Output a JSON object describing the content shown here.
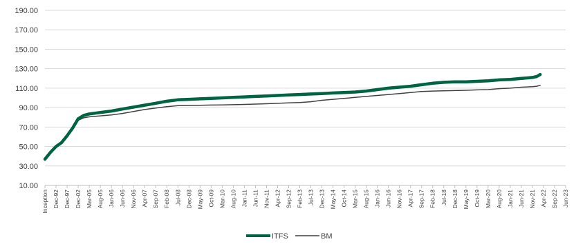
{
  "chart_data": {
    "type": "line",
    "ylim": [
      10,
      190
    ],
    "y_ticks": [
      "10.00",
      "30.00",
      "50.00",
      "70.00",
      "90.00",
      "110.00",
      "130.00",
      "150.00",
      "170.00",
      "190.00"
    ],
    "grid": "horizontal",
    "legend_position": "bottom-center",
    "x_tick_labels": [
      "Inception",
      "Dec-92",
      "Dec-97",
      "Dec-02",
      "Mar-05",
      "Aug-05",
      "Jan-06",
      "Jun-06",
      "Nov-06",
      "Apr-07",
      "Sep-07",
      "Feb-08",
      "Jul-08",
      "Dec-08",
      "May-09",
      "Oct-09",
      "Mar-10",
      "Aug-10",
      "Jan-11",
      "Jun-11",
      "Nov-11",
      "Apr-12",
      "Sep-12",
      "Feb-13",
      "Jul-13",
      "Dec-13",
      "May-14",
      "Oct-14",
      "Mar-15",
      "Aug-15",
      "Jan-16",
      "Jun-16",
      "Nov-16",
      "Apr-17",
      "Sep-17",
      "Feb-18",
      "Jul-18",
      "Dec-18",
      "May-19",
      "Oct-19",
      "Mar-20",
      "Aug-20",
      "Jan-21",
      "Jun-21",
      "Nov-21",
      "Apr-22",
      "Sep-22",
      "Jun-23"
    ],
    "series": [
      {
        "name": "ITFS",
        "color": "#006341",
        "values": [
          [
            0,
            37
          ],
          [
            0.5,
            44
          ],
          [
            1,
            50
          ],
          [
            1.5,
            54
          ],
          [
            2,
            61
          ],
          [
            2.5,
            69
          ],
          [
            3,
            78.5
          ],
          [
            3.5,
            82
          ],
          [
            4,
            83.5
          ],
          [
            5,
            85
          ],
          [
            6,
            86.5
          ],
          [
            7,
            88.5
          ],
          [
            8,
            90.5
          ],
          [
            9,
            92.5
          ],
          [
            10,
            94.5
          ],
          [
            11,
            96.5
          ],
          [
            12,
            98
          ],
          [
            13,
            98.5
          ],
          [
            14,
            99
          ],
          [
            15,
            99.5
          ],
          [
            16,
            100
          ],
          [
            17,
            100.5
          ],
          [
            18,
            101
          ],
          [
            19,
            101.5
          ],
          [
            20,
            102
          ],
          [
            21,
            102.5
          ],
          [
            22,
            103
          ],
          [
            23,
            103.5
          ],
          [
            24,
            104
          ],
          [
            25,
            104.5
          ],
          [
            26,
            105
          ],
          [
            27,
            105.5
          ],
          [
            28,
            106
          ],
          [
            29,
            107
          ],
          [
            30,
            108.5
          ],
          [
            31,
            110
          ],
          [
            32,
            111
          ],
          [
            33,
            112
          ],
          [
            34,
            113.5
          ],
          [
            35,
            115
          ],
          [
            36,
            116
          ],
          [
            37,
            116.5
          ],
          [
            38,
            116.5
          ],
          [
            39,
            117
          ],
          [
            40,
            117.5
          ],
          [
            41,
            118.5
          ],
          [
            42,
            119
          ],
          [
            43,
            120
          ],
          [
            44,
            121
          ],
          [
            44.4,
            122
          ],
          [
            44.7,
            124
          ]
        ]
      },
      {
        "name": "BM",
        "color": "#404040",
        "values": [
          [
            0,
            38
          ],
          [
            0.5,
            45
          ],
          [
            1,
            50
          ],
          [
            1.5,
            54
          ],
          [
            2,
            60
          ],
          [
            2.5,
            68
          ],
          [
            3,
            77
          ],
          [
            3.5,
            79.5
          ],
          [
            4,
            80.5
          ],
          [
            5,
            81.5
          ],
          [
            6,
            82.5
          ],
          [
            7,
            84
          ],
          [
            8,
            86
          ],
          [
            9,
            88
          ],
          [
            10,
            89.5
          ],
          [
            11,
            91
          ],
          [
            12,
            92
          ],
          [
            13,
            92.2
          ],
          [
            14,
            92.4
          ],
          [
            15,
            92.6
          ],
          [
            16,
            92.8
          ],
          [
            17,
            93
          ],
          [
            18,
            93.3
          ],
          [
            19,
            93.6
          ],
          [
            20,
            94
          ],
          [
            21,
            94.4
          ],
          [
            22,
            94.8
          ],
          [
            23,
            95.2
          ],
          [
            24,
            96
          ],
          [
            25,
            97.5
          ],
          [
            26,
            98.5
          ],
          [
            27,
            99.5
          ],
          [
            28,
            100.5
          ],
          [
            29,
            101.5
          ],
          [
            30,
            102.5
          ],
          [
            31,
            103.5
          ],
          [
            32,
            104.5
          ],
          [
            33,
            105.5
          ],
          [
            34,
            106.5
          ],
          [
            35,
            107
          ],
          [
            36,
            107.3
          ],
          [
            37,
            107.5
          ],
          [
            38,
            107.8
          ],
          [
            39,
            108.2
          ],
          [
            40,
            108.5
          ],
          [
            41,
            109.5
          ],
          [
            42,
            110
          ],
          [
            43,
            111
          ],
          [
            44,
            111.5
          ],
          [
            44.4,
            112
          ],
          [
            44.7,
            113
          ]
        ]
      }
    ]
  }
}
